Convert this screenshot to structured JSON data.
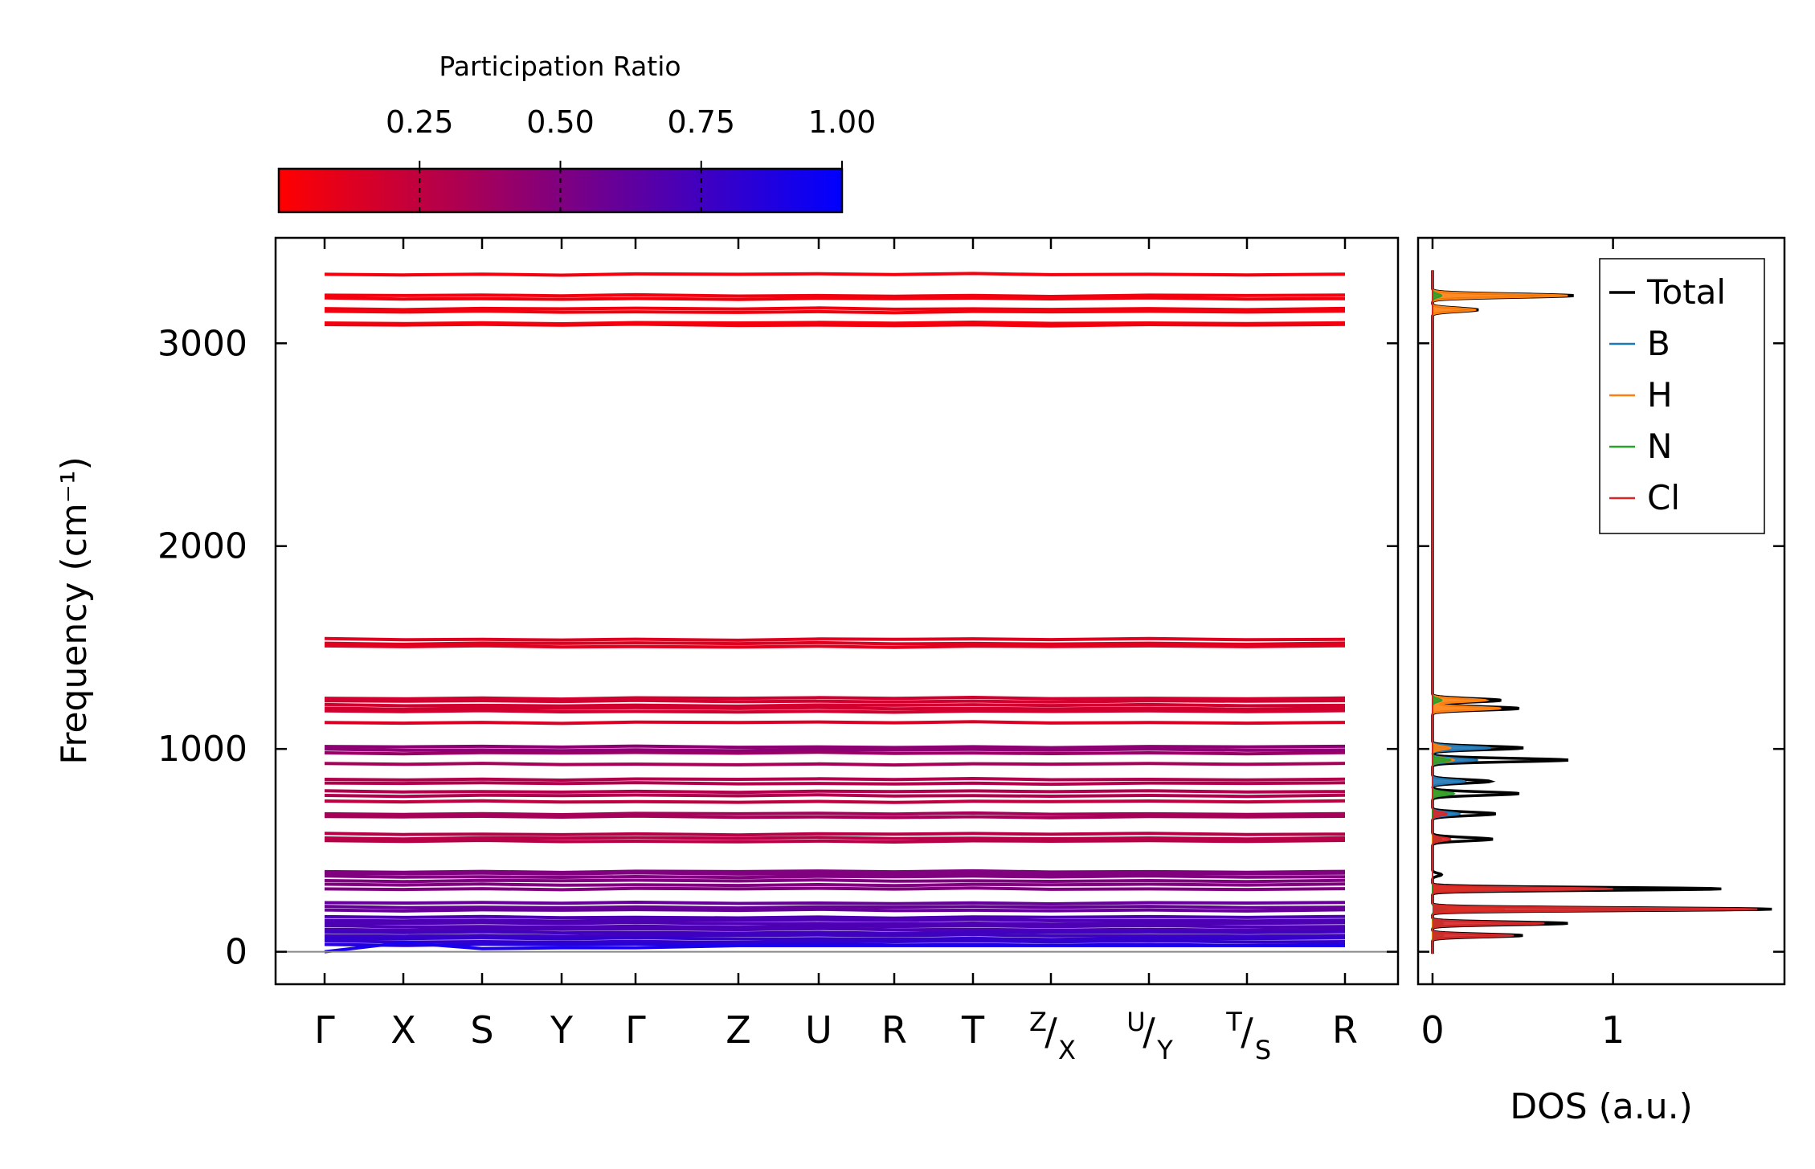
{
  "chart_data": [
    {
      "type": "line",
      "title": "",
      "xlabel": "",
      "ylabel": "Frequency (cm⁻¹)",
      "ylim": [
        -160,
        3520
      ],
      "yticks": [
        0,
        1000,
        2000,
        3000
      ],
      "ytick_labels": [
        "0",
        "1000",
        "2000",
        "3000"
      ],
      "kpath": [
        {
          "main": "Γ",
          "sup": "",
          "sub": ""
        },
        {
          "main": "X",
          "sup": "",
          "sub": ""
        },
        {
          "main": "S",
          "sup": "",
          "sub": ""
        },
        {
          "main": "Y",
          "sup": "",
          "sub": ""
        },
        {
          "main": "Γ",
          "sup": "",
          "sub": ""
        },
        {
          "main": "Z",
          "sup": "",
          "sub": ""
        },
        {
          "main": "U",
          "sup": "",
          "sub": ""
        },
        {
          "main": "R",
          "sup": "",
          "sub": ""
        },
        {
          "main": "T",
          "sup": "",
          "sub": ""
        },
        {
          "main": "/",
          "sup": "Z",
          "sub": "X"
        },
        {
          "main": "/",
          "sup": "U",
          "sub": "Y"
        },
        {
          "main": "/",
          "sup": "T",
          "sub": "S"
        },
        {
          "main": "R",
          "sup": "",
          "sub": ""
        }
      ],
      "colorbar": {
        "label": "Participation Ratio",
        "range": [
          0.0,
          1.0
        ],
        "ticks": [
          0.25,
          0.5,
          0.75,
          1.0
        ],
        "tick_labels": [
          "0.25",
          "0.50",
          "0.75",
          "1.00"
        ],
        "color_low": "#ff0000",
        "color_high": "#0000ff"
      },
      "bands": [
        {
          "freq": 3340,
          "pr": 0.05
        },
        {
          "freq": 3235,
          "pr": 0.05
        },
        {
          "freq": 3220,
          "pr": 0.05
        },
        {
          "freq": 3170,
          "pr": 0.05
        },
        {
          "freq": 3155,
          "pr": 0.05
        },
        {
          "freq": 3100,
          "pr": 0.05
        },
        {
          "freq": 3090,
          "pr": 0.05
        },
        {
          "freq": 1540,
          "pr": 0.12
        },
        {
          "freq": 1520,
          "pr": 0.12
        },
        {
          "freq": 1505,
          "pr": 0.12
        },
        {
          "freq": 1250,
          "pr": 0.18
        },
        {
          "freq": 1235,
          "pr": 0.18
        },
        {
          "freq": 1215,
          "pr": 0.18
        },
        {
          "freq": 1200,
          "pr": 0.18
        },
        {
          "freq": 1185,
          "pr": 0.18
        },
        {
          "freq": 1130,
          "pr": 0.15
        },
        {
          "freq": 1010,
          "pr": 0.45
        },
        {
          "freq": 995,
          "pr": 0.45
        },
        {
          "freq": 980,
          "pr": 0.4
        },
        {
          "freq": 925,
          "pr": 0.35
        },
        {
          "freq": 850,
          "pr": 0.3
        },
        {
          "freq": 830,
          "pr": 0.3
        },
        {
          "freq": 790,
          "pr": 0.3
        },
        {
          "freq": 770,
          "pr": 0.3
        },
        {
          "freq": 740,
          "pr": 0.25
        },
        {
          "freq": 680,
          "pr": 0.35
        },
        {
          "freq": 665,
          "pr": 0.35
        },
        {
          "freq": 580,
          "pr": 0.28
        },
        {
          "freq": 560,
          "pr": 0.28
        },
        {
          "freq": 545,
          "pr": 0.28
        },
        {
          "freq": 395,
          "pr": 0.5
        },
        {
          "freq": 385,
          "pr": 0.5
        },
        {
          "freq": 370,
          "pr": 0.5
        },
        {
          "freq": 350,
          "pr": 0.5
        },
        {
          "freq": 330,
          "pr": 0.5
        },
        {
          "freq": 310,
          "pr": 0.5
        },
        {
          "freq": 240,
          "pr": 0.6
        },
        {
          "freq": 220,
          "pr": 0.6
        },
        {
          "freq": 205,
          "pr": 0.6
        },
        {
          "freq": 170,
          "pr": 0.7
        },
        {
          "freq": 155,
          "pr": 0.7
        },
        {
          "freq": 140,
          "pr": 0.7
        },
        {
          "freq": 125,
          "pr": 0.7
        },
        {
          "freq": 110,
          "pr": 0.7
        },
        {
          "freq": 95,
          "pr": 0.75
        },
        {
          "freq": 80,
          "pr": 0.75
        },
        {
          "freq": 65,
          "pr": 0.8
        },
        {
          "freq": 50,
          "pr": 0.8
        },
        {
          "freq": 35,
          "pr": 0.85
        }
      ],
      "acoustic_branch": [
        0,
        45,
        15,
        20,
        20,
        30,
        30,
        30,
        30,
        30,
        30,
        30,
        30
      ],
      "zero_line": 0
    },
    {
      "type": "line",
      "title": "",
      "xlabel": "DOS (a.u.)",
      "ylabel": "",
      "xlim": [
        -0.08,
        1.95
      ],
      "xticks": [
        0,
        1
      ],
      "xtick_labels": [
        "0",
        "1"
      ],
      "legend_position": "top-right",
      "series": [
        {
          "name": "Total",
          "color": "#000000",
          "peaks": [
            [
              3235,
              0.78,
              12
            ],
            [
              3165,
              0.25,
              12
            ],
            [
              1240,
              0.38,
              12
            ],
            [
              1200,
              0.48,
              12
            ],
            [
              1005,
              0.5,
              12
            ],
            [
              945,
              0.75,
              12
            ],
            [
              840,
              0.32,
              12
            ],
            [
              780,
              0.48,
              12
            ],
            [
              680,
              0.35,
              12
            ],
            [
              555,
              0.33,
              12
            ],
            [
              380,
              0.05,
              10
            ],
            [
              310,
              1.6,
              10
            ],
            [
              210,
              1.88,
              10
            ],
            [
              140,
              0.75,
              10
            ],
            [
              80,
              0.5,
              10
            ]
          ]
        },
        {
          "name": "B",
          "color": "#1f77b4",
          "peaks": [
            [
              1005,
              0.32,
              12
            ],
            [
              945,
              0.25,
              12
            ],
            [
              840,
              0.18,
              12
            ],
            [
              680,
              0.15,
              12
            ],
            [
              555,
              0.05,
              12
            ],
            [
              210,
              0.12,
              10
            ],
            [
              140,
              0.06,
              10
            ]
          ]
        },
        {
          "name": "H",
          "color": "#ff7f0e",
          "peaks": [
            [
              3235,
              0.75,
              12
            ],
            [
              3165,
              0.24,
              12
            ],
            [
              1240,
              0.3,
              12
            ],
            [
              1200,
              0.38,
              12
            ],
            [
              1005,
              0.1,
              12
            ],
            [
              945,
              0.12,
              12
            ],
            [
              780,
              0.08,
              12
            ],
            [
              310,
              0.5,
              10
            ],
            [
              210,
              0.4,
              10
            ]
          ]
        },
        {
          "name": "N",
          "color": "#2ca02c",
          "peaks": [
            [
              3235,
              0.05,
              12
            ],
            [
              1240,
              0.05,
              12
            ],
            [
              945,
              0.1,
              12
            ],
            [
              780,
              0.12,
              12
            ],
            [
              555,
              0.05,
              12
            ],
            [
              210,
              0.08,
              10
            ],
            [
              140,
              0.05,
              10
            ],
            [
              80,
              0.06,
              10
            ]
          ]
        },
        {
          "name": "Cl",
          "color": "#d62728",
          "peaks": [
            [
              680,
              0.08,
              12
            ],
            [
              555,
              0.1,
              12
            ],
            [
              310,
              1.0,
              10
            ],
            [
              210,
              1.8,
              10
            ],
            [
              140,
              0.62,
              10
            ],
            [
              80,
              0.45,
              10
            ]
          ]
        }
      ]
    }
  ]
}
